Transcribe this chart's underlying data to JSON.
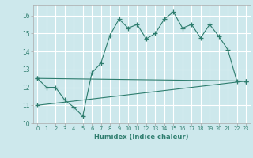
{
  "bg_color": "#cde8ec",
  "grid_color": "#ffffff",
  "line_color": "#2e7d6e",
  "xlabel": "Humidex (Indice chaleur)",
  "xlim": [
    -0.5,
    23.5
  ],
  "ylim": [
    10,
    16.6
  ],
  "yticks": [
    10,
    11,
    12,
    13,
    14,
    15,
    16
  ],
  "xticks": [
    0,
    1,
    2,
    3,
    4,
    5,
    6,
    7,
    8,
    9,
    10,
    11,
    12,
    13,
    14,
    15,
    16,
    17,
    18,
    19,
    20,
    21,
    22,
    23
  ],
  "series2_x": [
    0,
    23
  ],
  "series2_y": [
    12.5,
    12.35
  ],
  "series3_x": [
    0,
    23
  ],
  "series3_y": [
    11.0,
    12.35
  ],
  "marker_x1": [
    0,
    1,
    2,
    3,
    4,
    5,
    6,
    7,
    8,
    9,
    10,
    11,
    12,
    13,
    14,
    15,
    16,
    17,
    18,
    19,
    20,
    21,
    22,
    23
  ],
  "marker_y1": [
    12.5,
    12.0,
    12.0,
    11.3,
    10.9,
    10.4,
    12.8,
    13.35,
    14.9,
    15.8,
    15.3,
    15.5,
    14.7,
    15.0,
    15.8,
    16.2,
    15.3,
    15.5,
    14.75,
    15.5,
    14.85,
    14.1,
    12.35,
    12.35
  ]
}
